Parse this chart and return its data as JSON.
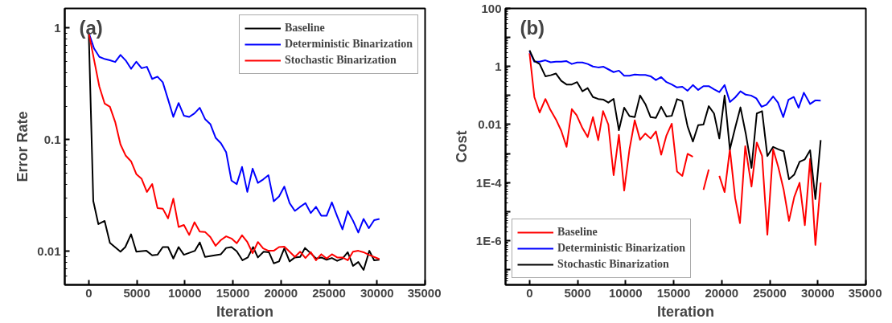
{
  "chart_data": [
    {
      "type": "line",
      "xlabel": "Iteration",
      "ylabel": "Error Rate",
      "annotations": [
        "(a)"
      ],
      "log": "y",
      "legend": "top right",
      "grid": false,
      "marker": "none",
      "line_style": "solid",
      "xlim": [
        -2500,
        35000
      ],
      "xticks": [
        0,
        5000,
        10000,
        15000,
        20000,
        25000,
        30000,
        35000
      ],
      "ylim": [
        0.005,
        1.5
      ],
      "yticks": [
        1,
        0.1,
        0.01
      ],
      "series": [
        {
          "name": "Baseline",
          "color": "#000000",
          "x": [
            0,
            470,
            1000,
            1650,
            2200,
            3300,
            3800,
            4400,
            4950,
            6000,
            6600,
            7150,
            7700,
            8250,
            8800,
            9350,
            9900,
            11050,
            11550,
            12100,
            13750,
            14300,
            14850,
            15400,
            16000,
            16550,
            17100,
            17600,
            18200,
            18750,
            19250,
            19800,
            20350,
            20900,
            21450,
            22000,
            22500,
            23100,
            23650,
            24200,
            24750,
            25300,
            25850,
            26400,
            26950,
            27500,
            28050,
            28600,
            29200,
            29700,
            30250
          ],
          "values": [
            0.906,
            0.0282,
            0.0175,
            0.0187,
            0.0119,
            0.0099,
            0.0109,
            0.0142,
            0.0099,
            0.0101,
            0.0092,
            0.0093,
            0.0109,
            0.0109,
            0.0086,
            0.0109,
            0.0093,
            0.0101,
            0.012,
            0.0089,
            0.0094,
            0.0107,
            0.0109,
            0.01,
            0.0083,
            0.0088,
            0.0109,
            0.0088,
            0.0099,
            0.0098,
            0.0078,
            0.0081,
            0.0106,
            0.0081,
            0.0088,
            0.0089,
            0.0107,
            0.0096,
            0.0086,
            0.0088,
            0.0084,
            0.0087,
            0.0082,
            0.0086,
            0.0098,
            0.0074,
            0.008,
            0.0068,
            0.0101,
            0.0083,
            0.0084
          ]
        },
        {
          "name": "Deterministic Binarization",
          "color": "#0000ff",
          "x": [
            0,
            550,
            1100,
            1700,
            2200,
            2750,
            3300,
            3850,
            4400,
            4950,
            5500,
            6050,
            6600,
            7150,
            7700,
            8250,
            8800,
            9350,
            9900,
            10450,
            11000,
            11550,
            12100,
            12650,
            13200,
            13750,
            14300,
            14850,
            15400,
            15950,
            16500,
            17050,
            17600,
            18150,
            18700,
            19250,
            19800,
            20350,
            20900,
            21450,
            22000,
            22550,
            23100,
            23650,
            24200,
            24750,
            25300,
            25850,
            26400,
            26950,
            27500,
            28050,
            28600,
            29150,
            29700,
            30250
          ],
          "values": [
            0.906,
            0.657,
            0.552,
            0.527,
            0.515,
            0.497,
            0.575,
            0.512,
            0.432,
            0.5,
            0.437,
            0.45,
            0.35,
            0.367,
            0.327,
            0.23,
            0.16,
            0.213,
            0.164,
            0.16,
            0.172,
            0.193,
            0.153,
            0.138,
            0.104,
            0.093,
            0.077,
            0.043,
            0.04,
            0.057,
            0.034,
            0.055,
            0.041,
            0.044,
            0.048,
            0.028,
            0.031,
            0.038,
            0.027,
            0.023,
            0.025,
            0.027,
            0.022,
            0.025,
            0.0208,
            0.0208,
            0.0274,
            0.0206,
            0.0157,
            0.0229,
            0.0188,
            0.0147,
            0.0195,
            0.0161,
            0.019,
            0.0195
          ]
        },
        {
          "name": "Stochastic Binarization",
          "color": "#ff0000",
          "x": [
            0,
            550,
            1100,
            1650,
            2200,
            2750,
            3300,
            3850,
            4400,
            4950,
            5500,
            6050,
            6600,
            7150,
            7700,
            8250,
            8800,
            9350,
            9900,
            10450,
            11000,
            11550,
            12100,
            12650,
            13200,
            13750,
            14300,
            14850,
            15400,
            15950,
            16500,
            17050,
            17600,
            18150,
            18700,
            19250,
            19800,
            20350,
            20900,
            21450,
            22000,
            22550,
            23100,
            23650,
            24200,
            24750,
            25300,
            25850,
            26400,
            26950,
            27500,
            28050,
            28600,
            29150,
            30250
          ],
          "values": [
            0.906,
            0.52,
            0.299,
            0.211,
            0.197,
            0.144,
            0.0906,
            0.0718,
            0.064,
            0.0491,
            0.0446,
            0.034,
            0.04,
            0.0244,
            0.0241,
            0.0197,
            0.0296,
            0.0165,
            0.0172,
            0.014,
            0.0182,
            0.015,
            0.0149,
            0.0134,
            0.0112,
            0.0126,
            0.0136,
            0.013,
            0.0118,
            0.0139,
            0.0121,
            0.0096,
            0.0121,
            0.0106,
            0.0101,
            0.0101,
            0.0109,
            0.011,
            0.0099,
            0.0089,
            0.0099,
            0.0087,
            0.0098,
            0.0083,
            0.0094,
            0.0086,
            0.0094,
            0.0088,
            0.0088,
            0.0083,
            0.0099,
            0.0101,
            0.0098,
            0.0093,
            0.0085
          ]
        }
      ]
    },
    {
      "type": "line",
      "xlabel": "Iteration",
      "ylabel": "Cost",
      "annotations": [
        "(b)"
      ],
      "log": "y",
      "legend": "bottom left",
      "grid": false,
      "marker": "none",
      "line_style": "solid",
      "xlim": [
        -2500,
        35000
      ],
      "xticks": [
        0,
        5000,
        10000,
        15000,
        20000,
        25000,
        30000,
        35000
      ],
      "ylim": [
        3e-08,
        100
      ],
      "yticks": [
        {
          "value": 100,
          "label": "100"
        },
        {
          "value": 10,
          "label": null
        },
        {
          "value": 1,
          "label": "1"
        },
        {
          "value": 0.1,
          "label": null
        },
        {
          "value": 0.01,
          "label": "0.01"
        },
        {
          "value": 0.001,
          "label": null
        },
        {
          "value": 0.0001,
          "label": "1E-4"
        },
        {
          "value": 1e-05,
          "label": null
        },
        {
          "value": 1e-06,
          "label": "1E-6"
        },
        {
          "value": 1e-07,
          "label": null
        }
      ],
      "series": [
        {
          "name": "Baseline",
          "color": "#ff0000",
          "x": [
            0,
            500,
            1050,
            1650,
            2150,
            2750,
            3300,
            3850,
            4400,
            4900,
            5500,
            6050,
            6600,
            7150,
            7650,
            8200,
            8750,
            9300,
            9850,
            10400,
            10950,
            11500,
            12050,
            12600,
            13150,
            13700,
            14250,
            14800,
            15350,
            15900,
            16450,
            17000,
            17550,
            18100,
            18650,
            19200,
            19750,
            20300,
            20850,
            21400,
            21900,
            22450,
            23100,
            23650,
            24200,
            24750,
            25350,
            25900,
            26450,
            27000,
            27550,
            28100,
            28650,
            29200,
            29750,
            30300
          ],
          "values": [
            2.86,
            0.089,
            0.026,
            0.076,
            0.033,
            0.015,
            0.0061,
            0.0017,
            0.034,
            0.021,
            0.0076,
            0.0037,
            0.018,
            0.0029,
            0.029,
            0.01,
            0.00018,
            0.0044,
            5.3e-05,
            0.0014,
            0.014,
            0.003,
            0.0049,
            0.0033,
            0.0058,
            0.00091,
            0.0042,
            0.0107,
            0.00024,
            0.00017,
            0.00098,
            0.00078,
            null,
            5.6e-05,
            0.00028,
            null,
            0.00017,
            4.7e-05,
            0.0014,
            2.9e-05,
            4e-06,
            0.0018,
            7.3e-05,
            0.0024,
            0.00082,
            1.6e-06,
            0.0014,
            0.00033,
            5.6e-05,
            4.8e-06,
            3.2e-05,
            9.8e-05,
            3.4e-06,
            0.00065,
            7.1e-07,
            0.0001
          ]
        },
        {
          "name": "Deterministic Binarization",
          "color": "#0000ff",
          "x": [
            0,
            500,
            1050,
            1650,
            2200,
            2750,
            3300,
            3850,
            4400,
            4950,
            5500,
            6050,
            6600,
            7150,
            7700,
            8200,
            8750,
            9300,
            9850,
            10400,
            10950,
            11500,
            12050,
            12600,
            13150,
            13700,
            14250,
            14800,
            15350,
            15900,
            16450,
            17000,
            17550,
            18100,
            18650,
            19200,
            19750,
            20300,
            20850,
            21400,
            21950,
            22500,
            23050,
            23600,
            24150,
            24650,
            25350,
            25850,
            26400,
            26950,
            27500,
            28000,
            28550,
            29200,
            29750,
            30300
          ],
          "values": [
            3.4,
            1.46,
            1.46,
            1.63,
            1.4,
            1.46,
            1.46,
            1.53,
            1.22,
            1.37,
            1.37,
            1.22,
            1.0,
            0.93,
            0.98,
            0.8,
            0.64,
            0.72,
            0.48,
            0.48,
            0.53,
            0.51,
            0.51,
            0.46,
            0.34,
            0.43,
            0.29,
            0.24,
            0.19,
            0.2,
            0.146,
            0.23,
            0.156,
            0.21,
            0.21,
            0.164,
            0.131,
            0.23,
            0.06,
            0.086,
            0.14,
            0.107,
            0.1,
            0.08,
            0.041,
            0.048,
            0.093,
            0.057,
            0.018,
            0.072,
            0.089,
            0.038,
            0.125,
            0.051,
            0.068,
            0.067
          ]
        },
        {
          "name": "Stochastic Binarization",
          "color": "#000000",
          "x": [
            0,
            500,
            1050,
            1650,
            2200,
            2750,
            3300,
            3850,
            4400,
            4950,
            5500,
            6050,
            6600,
            7150,
            7700,
            8200,
            8750,
            9300,
            9850,
            10400,
            10950,
            11500,
            12050,
            12600,
            13150,
            13700,
            14250,
            14800,
            15350,
            15900,
            16450,
            17000,
            17550,
            18100,
            18650,
            19200,
            19750,
            20300,
            20850,
            21400,
            21950,
            22500,
            23100,
            23650,
            24200,
            24750,
            25350,
            25900,
            26450,
            27000,
            27550,
            28100,
            28650,
            29200,
            29750,
            30300
          ],
          "values": [
            3.6,
            1.56,
            1.22,
            0.46,
            0.5,
            0.57,
            0.32,
            0.24,
            0.24,
            0.29,
            0.14,
            0.18,
            0.089,
            0.076,
            0.072,
            0.057,
            0.076,
            0.0064,
            0.038,
            0.0196,
            0.018,
            0.1,
            0.051,
            0.018,
            0.017,
            0.041,
            0.019,
            0.02,
            0.075,
            0.064,
            0.0086,
            0.0026,
            0.0095,
            0.01,
            0.043,
            0.024,
            0.0033,
            0.1,
            0.0014,
            0.0077,
            0.039,
            0.0049,
            0.00032,
            0.024,
            0.029,
            0.00082,
            0.0017,
            0.0014,
            0.0012,
            0.00013,
            0.00019,
            0.00052,
            0.00063,
            0.0013,
            2.7e-05,
            0.0029
          ]
        }
      ]
    }
  ]
}
